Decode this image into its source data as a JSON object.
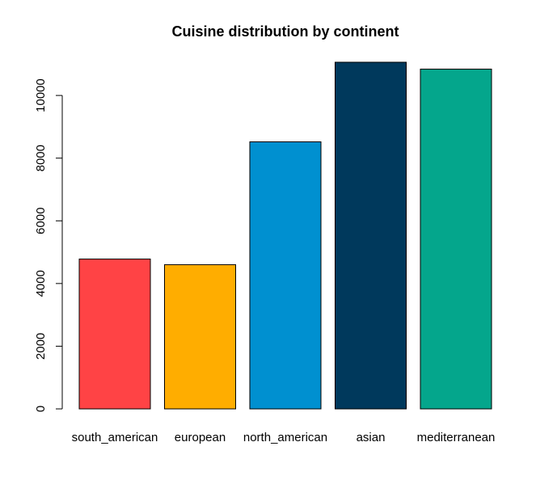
{
  "chart_data": {
    "type": "bar",
    "title": "Cuisine distribution by continent",
    "xlabel": "",
    "ylabel": "",
    "categories": [
      "south_american",
      "european",
      "north_american",
      "asian",
      "mediterranean"
    ],
    "values": [
      4780,
      4600,
      8520,
      11060,
      10840
    ],
    "colors": [
      "#FF4345",
      "#FFAD00",
      "#0090D0",
      "#00395C",
      "#04A68C"
    ],
    "ylim": [
      0,
      11060
    ],
    "yticks": [
      0,
      2000,
      4000,
      6000,
      8000,
      10000
    ],
    "ytick_labels": [
      "0",
      "2000",
      "4000",
      "6000",
      "8000",
      "10000"
    ],
    "grid": false,
    "legend": "none"
  }
}
